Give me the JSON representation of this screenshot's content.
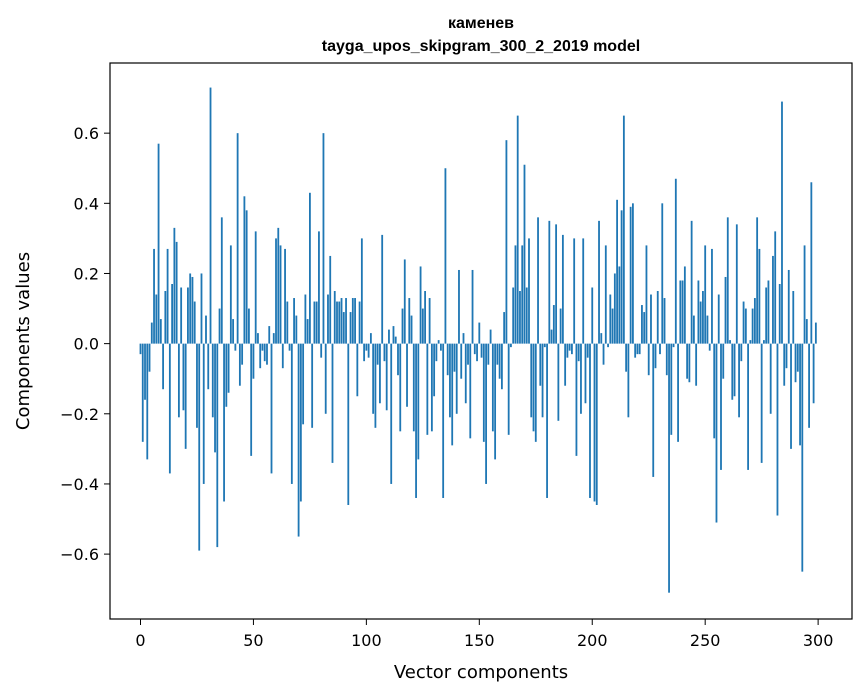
{
  "chart_data": {
    "type": "bar",
    "title": "каменев",
    "subtitle": "tayga_upos_skipgram_300_2_2019 model",
    "xlabel": "Vector components",
    "ylabel": "Components values",
    "xlim": [
      -13.5,
      315
    ],
    "ylim": [
      -0.785,
      0.8
    ],
    "xticks": [
      0,
      50,
      100,
      150,
      200,
      250,
      300
    ],
    "xtick_labels": [
      "0",
      "50",
      "100",
      "150",
      "200",
      "250",
      "300"
    ],
    "yticks": [
      -0.6,
      -0.4,
      -0.2,
      0.0,
      0.2,
      0.4,
      0.6
    ],
    "ytick_labels": [
      "−0.6",
      "−0.4",
      "−0.2",
      "0.0",
      "0.2",
      "0.4",
      "0.6"
    ],
    "bar_color": "#1f77b4",
    "grid": false,
    "x": "0..299",
    "values": [
      -0.03,
      -0.28,
      -0.16,
      -0.33,
      -0.08,
      0.06,
      0.27,
      0.14,
      0.57,
      0.07,
      -0.13,
      0.15,
      0.27,
      -0.37,
      0.17,
      0.33,
      0.29,
      -0.21,
      0.16,
      -0.19,
      -0.3,
      0.16,
      0.2,
      0.19,
      0.12,
      -0.24,
      -0.59,
      0.2,
      -0.4,
      0.08,
      -0.13,
      0.73,
      -0.21,
      -0.31,
      -0.58,
      0.1,
      0.36,
      -0.45,
      -0.18,
      -0.14,
      0.28,
      0.07,
      -0.02,
      0.6,
      -0.12,
      -0.06,
      0.42,
      0.38,
      0.1,
      -0.32,
      -0.1,
      0.32,
      0.03,
      -0.07,
      -0.02,
      -0.05,
      -0.06,
      0.05,
      -0.37,
      0.03,
      0.3,
      0.33,
      0.28,
      -0.07,
      0.27,
      0.12,
      -0.02,
      -0.4,
      0.13,
      0.08,
      -0.55,
      -0.45,
      -0.23,
      0.14,
      0.07,
      0.43,
      -0.24,
      0.12,
      0.12,
      0.32,
      -0.04,
      0.6,
      -0.2,
      0.14,
      0.25,
      -0.34,
      0.15,
      0.12,
      0.12,
      0.13,
      0.09,
      0.13,
      -0.46,
      0.09,
      0.13,
      0.13,
      -0.15,
      0.12,
      0.3,
      -0.05,
      -0.02,
      -0.04,
      0.03,
      -0.2,
      -0.24,
      -0.06,
      -0.17,
      0.31,
      -0.05,
      -0.19,
      0.04,
      -0.4,
      0.05,
      0.02,
      -0.09,
      -0.25,
      0.1,
      0.24,
      -0.18,
      0.13,
      0.08,
      -0.25,
      -0.44,
      -0.33,
      0.22,
      0.1,
      0.15,
      -0.26,
      0.13,
      -0.25,
      -0.15,
      -0.05,
      0.01,
      -0.02,
      -0.44,
      0.5,
      -0.09,
      -0.21,
      -0.29,
      -0.08,
      -0.2,
      0.21,
      -0.1,
      0.03,
      -0.17,
      -0.06,
      -0.27,
      0.21,
      -0.03,
      -0.05,
      0.06,
      -0.04,
      -0.28,
      -0.4,
      -0.06,
      0.04,
      -0.25,
      -0.33,
      -0.06,
      -0.1,
      -0.13,
      0.09,
      0.58,
      -0.26,
      -0.01,
      0.16,
      0.28,
      0.65,
      0.15,
      0.28,
      0.51,
      0.16,
      0.3,
      -0.21,
      -0.25,
      -0.28,
      0.36,
      -0.12,
      -0.21,
      -0.01,
      -0.44,
      0.35,
      0.04,
      0.11,
      0.34,
      -0.22,
      0.1,
      0.31,
      -0.12,
      -0.04,
      -0.02,
      -0.03,
      0.3,
      -0.32,
      -0.05,
      -0.2,
      0.3,
      -0.17,
      -0.04,
      -0.44,
      0.16,
      -0.45,
      -0.46,
      0.35,
      0.03,
      -0.06,
      0.28,
      -0.01,
      0.14,
      0.1,
      0.2,
      0.41,
      0.22,
      0.38,
      0.65,
      -0.08,
      -0.21,
      0.39,
      0.4,
      -0.04,
      -0.03,
      -0.03,
      0.11,
      0.09,
      0.28,
      -0.09,
      0.14,
      -0.38,
      -0.07,
      0.15,
      -0.03,
      0.4,
      0.13,
      -0.09,
      -0.71,
      -0.26,
      -0.01,
      0.47,
      -0.28,
      0.18,
      0.18,
      0.22,
      -0.1,
      -0.11,
      0.35,
      0.08,
      -0.12,
      0.18,
      0.12,
      0.15,
      0.28,
      0.08,
      -0.02,
      0.27,
      -0.27,
      -0.51,
      0.14,
      -0.36,
      -0.1,
      0.19,
      0.36,
      0.01,
      -0.16,
      -0.15,
      0.34,
      -0.21,
      -0.05,
      0.12,
      0.1,
      -0.36,
      0.01,
      0.1,
      0.13,
      0.36,
      0.27,
      -0.34,
      0.01,
      0.16,
      0.18,
      -0.2,
      0.25,
      0.32,
      -0.49,
      0.17,
      0.69,
      -0.12,
      -0.07,
      0.21,
      -0.3,
      0.15,
      -0.11,
      -0.08,
      -0.29,
      -0.65,
      0.28,
      0.07,
      -0.24,
      0.46,
      -0.17,
      0.06
    ]
  }
}
